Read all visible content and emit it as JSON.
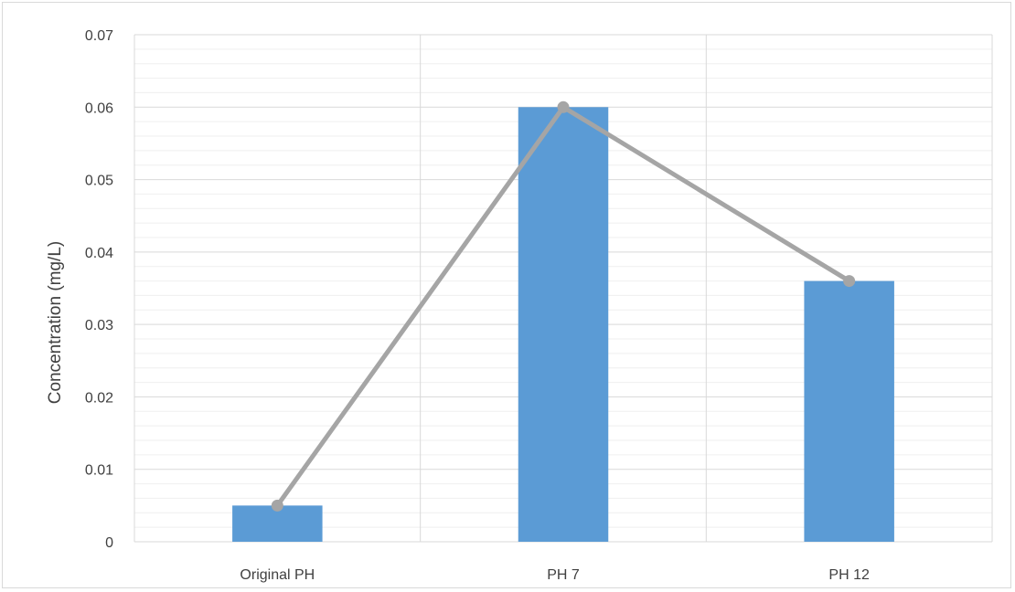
{
  "chart_data": {
    "type": "bar",
    "title": "",
    "xlabel": "",
    "ylabel": "Concentration (mg/L)",
    "categories": [
      "Original PH",
      "PH 7",
      "PH 12"
    ],
    "series": [
      {
        "type": "bar",
        "values": [
          0.005,
          0.06,
          0.036
        ],
        "color": "#5b9bd5"
      },
      {
        "type": "line",
        "values": [
          0.005,
          0.06,
          0.036
        ],
        "color": "#a5a5a5"
      }
    ],
    "ylim": [
      0,
      0.07
    ],
    "yticks": [
      "0",
      "0.01",
      "0.02",
      "0.03",
      "0.04",
      "0.05",
      "0.06",
      "0.07"
    ],
    "grid": true,
    "legend": "none"
  }
}
